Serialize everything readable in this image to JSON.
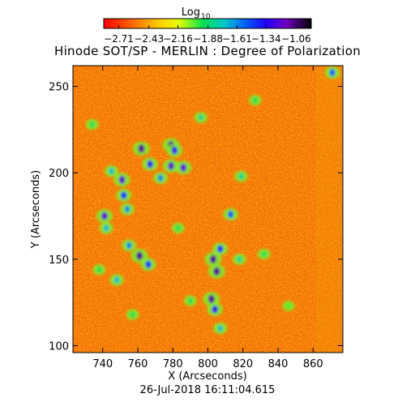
{
  "chart_data": {
    "type": "heatmap",
    "title": "Hinode SOT/SP - MERLIN : Degree of Polarization",
    "colorbar": {
      "title_base": "Log",
      "title_sub": "10",
      "ticks": [
        -2.71,
        -2.43,
        -2.16,
        -1.88,
        -1.61,
        -1.34,
        -1.06
      ],
      "tick_labels": [
        "−2.71",
        "−2.43",
        "−2.16",
        "−1.88",
        "−1.61",
        "−1.34",
        "−1.06"
      ],
      "range": [
        -2.85,
        -0.92
      ],
      "colormap": "rainbow-red-to-black",
      "orientation": "horizontal",
      "placement": "top"
    },
    "x": {
      "label": "X (Arcseconds)",
      "ticks": [
        740,
        760,
        780,
        800,
        820,
        840,
        860
      ],
      "tick_labels": [
        "740",
        "760",
        "780",
        "800",
        "820",
        "840",
        "860"
      ],
      "range": [
        723,
        877
      ]
    },
    "y": {
      "label": "Y (Arcseconds)",
      "ticks": [
        100,
        150,
        200,
        250
      ],
      "tick_labels": [
        "100",
        "150",
        "200",
        "250"
      ],
      "range": [
        96,
        262
      ]
    },
    "field_background_value": -2.5,
    "features": [
      {
        "x": 762,
        "y": 214,
        "value": -1.1
      },
      {
        "x": 767,
        "y": 205,
        "value": -1.3
      },
      {
        "x": 779,
        "y": 204,
        "value": -1.2
      },
      {
        "x": 786,
        "y": 203,
        "value": -1.2
      },
      {
        "x": 773,
        "y": 197,
        "value": -1.6
      },
      {
        "x": 779,
        "y": 216,
        "value": -1.1
      },
      {
        "x": 781,
        "y": 213,
        "value": -1.3
      },
      {
        "x": 751,
        "y": 196,
        "value": -1.2
      },
      {
        "x": 752,
        "y": 187,
        "value": -1.4
      },
      {
        "x": 754,
        "y": 179,
        "value": -1.6
      },
      {
        "x": 745,
        "y": 201,
        "value": -1.7
      },
      {
        "x": 741,
        "y": 175,
        "value": -1.2
      },
      {
        "x": 742,
        "y": 168,
        "value": -1.7
      },
      {
        "x": 755,
        "y": 158,
        "value": -1.6
      },
      {
        "x": 761,
        "y": 152,
        "value": -1.1
      },
      {
        "x": 766,
        "y": 147,
        "value": -1.4
      },
      {
        "x": 748,
        "y": 138,
        "value": -1.7
      },
      {
        "x": 803,
        "y": 150,
        "value": -1.1
      },
      {
        "x": 805,
        "y": 143,
        "value": -1.1
      },
      {
        "x": 807,
        "y": 156,
        "value": -1.4
      },
      {
        "x": 802,
        "y": 127,
        "value": -1.1
      },
      {
        "x": 804,
        "y": 121,
        "value": -1.3
      },
      {
        "x": 807,
        "y": 110,
        "value": -1.7
      },
      {
        "x": 818,
        "y": 150,
        "value": -1.8
      },
      {
        "x": 813,
        "y": 176,
        "value": -1.5
      },
      {
        "x": 819,
        "y": 198,
        "value": -1.8
      },
      {
        "x": 796,
        "y": 232,
        "value": -1.8
      },
      {
        "x": 827,
        "y": 242,
        "value": -1.9
      },
      {
        "x": 783,
        "y": 168,
        "value": -1.9
      },
      {
        "x": 832,
        "y": 153,
        "value": -1.9
      },
      {
        "x": 757,
        "y": 118,
        "value": -1.9
      },
      {
        "x": 790,
        "y": 126,
        "value": -1.9
      },
      {
        "x": 871,
        "y": 258,
        "value": -1.5
      },
      {
        "x": 734,
        "y": 228,
        "value": -1.9
      },
      {
        "x": 846,
        "y": 123,
        "value": -2.0
      },
      {
        "x": 738,
        "y": 144,
        "value": -1.9
      }
    ]
  },
  "timestamp": "26-Jul-2018 16:11:04.615"
}
